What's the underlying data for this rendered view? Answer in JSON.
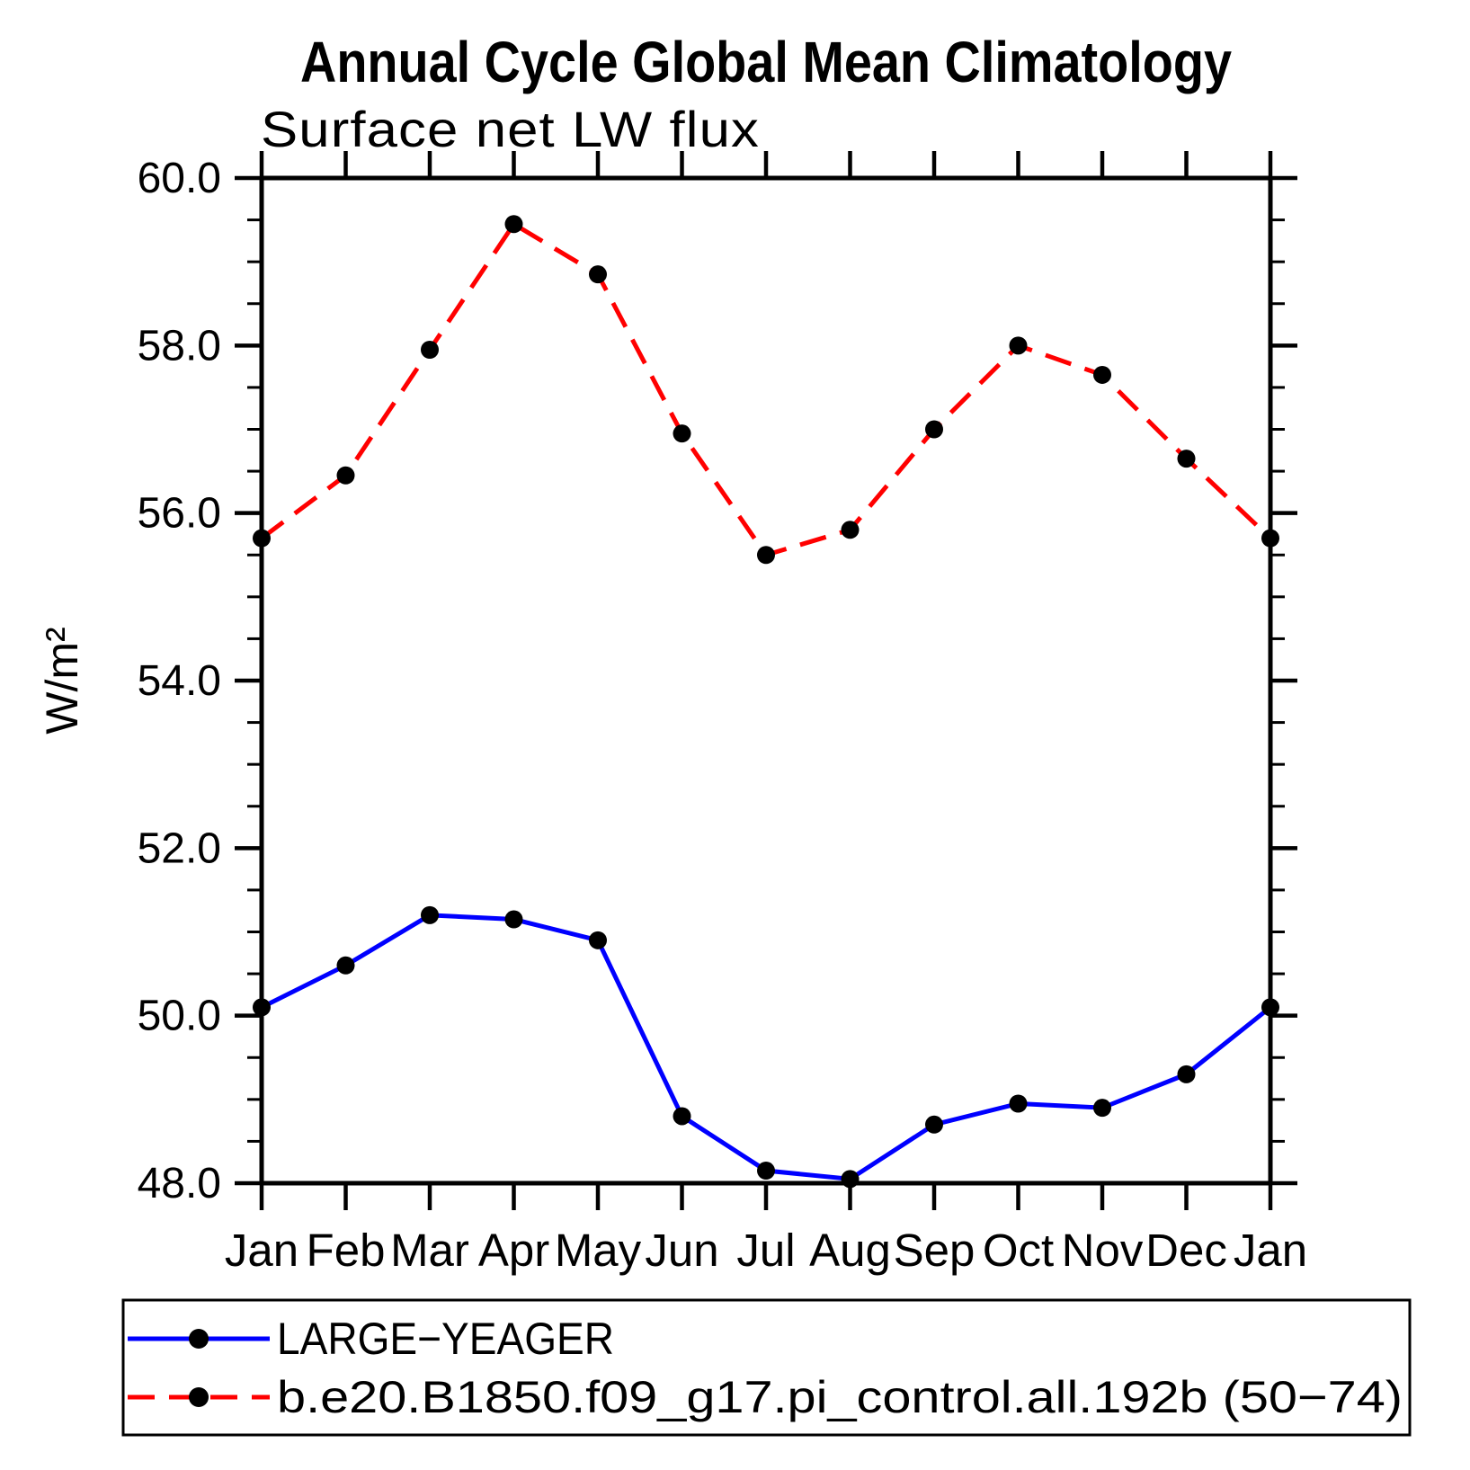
{
  "chart_data": {
    "type": "line",
    "title": "Annual Cycle Global Mean Climatology",
    "subtitle": "Surface net LW flux",
    "ylabel": "W/m²",
    "x_categories": [
      "Jan",
      "Feb",
      "Mar",
      "Apr",
      "May",
      "Jun",
      "Jul",
      "Aug",
      "Sep",
      "Oct",
      "Nov",
      "Dec",
      "Jan"
    ],
    "ylim": [
      48.0,
      60.0
    ],
    "y_major_step": 2.0,
    "y_minor_step": 0.5,
    "y_major_labels": [
      "48.0",
      "50.0",
      "52.0",
      "54.0",
      "56.0",
      "58.0",
      "60.0"
    ],
    "grid": false,
    "legend_position": "bottom-left-box",
    "axis_color": "#000000",
    "marker": "filled-circle",
    "marker_color": "#000000",
    "series": [
      {
        "name": "LARGE−YEAGER",
        "color": "#0000ff",
        "line_style": "solid",
        "values": [
          50.1,
          50.6,
          51.2,
          51.15,
          50.9,
          48.8,
          48.15,
          48.05,
          48.7,
          48.95,
          48.9,
          49.3,
          50.1
        ]
      },
      {
        "name": "b.e20.B1850.f09_g17.pi_control.all.192b (50−74)",
        "color": "#ff0000",
        "line_style": "dashed",
        "values": [
          55.7,
          56.45,
          57.95,
          59.45,
          58.85,
          56.95,
          55.5,
          55.8,
          57.0,
          58.0,
          57.65,
          56.65,
          55.7
        ]
      }
    ]
  }
}
